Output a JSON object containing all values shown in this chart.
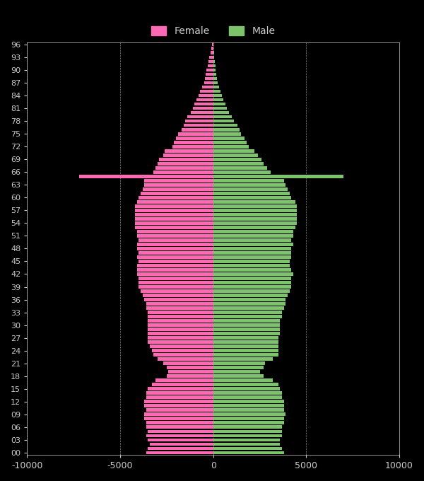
{
  "ages": [
    0,
    1,
    2,
    3,
    4,
    5,
    6,
    7,
    8,
    9,
    10,
    11,
    12,
    13,
    14,
    15,
    16,
    17,
    18,
    19,
    20,
    21,
    22,
    23,
    24,
    25,
    26,
    27,
    28,
    29,
    30,
    31,
    32,
    33,
    34,
    35,
    36,
    37,
    38,
    39,
    40,
    41,
    42,
    43,
    44,
    45,
    46,
    47,
    48,
    49,
    50,
    51,
    52,
    53,
    54,
    55,
    56,
    57,
    58,
    59,
    60,
    61,
    62,
    63,
    64,
    65,
    66,
    67,
    68,
    69,
    70,
    71,
    72,
    73,
    74,
    75,
    76,
    77,
    78,
    79,
    80,
    81,
    82,
    83,
    84,
    85,
    86,
    87,
    88,
    89,
    90,
    91,
    92,
    93,
    94,
    95,
    96
  ],
  "female": [
    3600,
    3500,
    3400,
    3500,
    3600,
    3500,
    3600,
    3600,
    3700,
    3700,
    3600,
    3700,
    3700,
    3600,
    3600,
    3500,
    3300,
    3100,
    2500,
    2400,
    2500,
    2700,
    3000,
    3200,
    3300,
    3400,
    3500,
    3500,
    3500,
    3500,
    3500,
    3500,
    3500,
    3500,
    3600,
    3600,
    3700,
    3800,
    3900,
    4000,
    4000,
    4000,
    4100,
    4100,
    4100,
    4000,
    4100,
    4000,
    4100,
    4100,
    4000,
    4100,
    4100,
    4200,
    4200,
    4200,
    4200,
    4200,
    4200,
    4100,
    4000,
    3900,
    3800,
    3700,
    3700,
    7200,
    3200,
    3100,
    3000,
    2900,
    2700,
    2600,
    2200,
    2100,
    2000,
    1900,
    1700,
    1600,
    1500,
    1400,
    1200,
    1100,
    1000,
    900,
    800,
    700,
    600,
    500,
    450,
    400,
    350,
    300,
    250,
    200,
    150,
    100,
    50
  ],
  "male": [
    3800,
    3700,
    3600,
    3600,
    3700,
    3700,
    3700,
    3800,
    3800,
    3900,
    3800,
    3800,
    3800,
    3700,
    3700,
    3600,
    3500,
    3200,
    2700,
    2500,
    2700,
    2800,
    3200,
    3500,
    3500,
    3500,
    3500,
    3500,
    3600,
    3600,
    3600,
    3600,
    3700,
    3700,
    3800,
    3900,
    3900,
    4000,
    4100,
    4200,
    4200,
    4200,
    4300,
    4200,
    4100,
    4100,
    4200,
    4200,
    4200,
    4300,
    4200,
    4300,
    4300,
    4400,
    4500,
    4500,
    4500,
    4500,
    4500,
    4400,
    4200,
    4100,
    4000,
    3900,
    3800,
    7000,
    3100,
    2900,
    2700,
    2600,
    2400,
    2200,
    1900,
    1800,
    1700,
    1500,
    1400,
    1300,
    1100,
    1000,
    850,
    750,
    650,
    550,
    450,
    380,
    320,
    250,
    210,
    170,
    140,
    110,
    80,
    60,
    40,
    30,
    15
  ],
  "ytick_labels": [
    "00",
    "03",
    "06",
    "09",
    "12",
    "15",
    "18",
    "21",
    "24",
    "27",
    "30",
    "33",
    "36",
    "39",
    "42",
    "45",
    "48",
    "51",
    "54",
    "57",
    "60",
    "63",
    "66",
    "69",
    "72",
    "75",
    "78",
    "81",
    "84",
    "87",
    "90",
    "93",
    "96"
  ],
  "ytick_positions": [
    0,
    3,
    6,
    9,
    12,
    15,
    18,
    21,
    24,
    27,
    30,
    33,
    36,
    39,
    42,
    45,
    48,
    51,
    54,
    57,
    60,
    63,
    66,
    69,
    72,
    75,
    78,
    81,
    84,
    87,
    90,
    93,
    96
  ],
  "xlim": [
    -10000,
    10000
  ],
  "xticks": [
    -10000,
    -5000,
    0,
    5000,
    10000
  ],
  "xtick_labels": [
    "-10000",
    "-5000",
    "0",
    "5000",
    "10000"
  ],
  "female_color": "#FF69B4",
  "male_color": "#7DC36B",
  "background_color": "#000000",
  "text_color": "#CCCCCC",
  "grid_color": "#FFFFFF",
  "bar_height": 0.8
}
